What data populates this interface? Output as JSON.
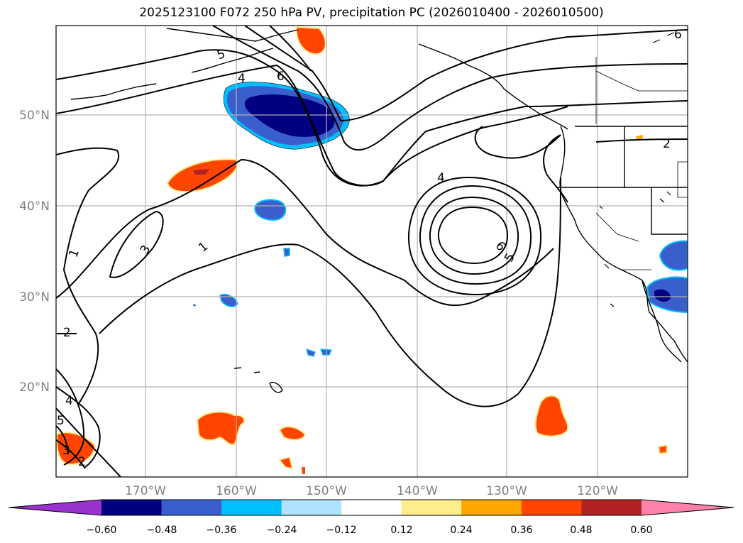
{
  "title": "2025123100 F072 250 hPa PV, precipitation PC (2026010400 - 2026010500)",
  "map": {
    "lat_labels": [
      "50°N",
      "40°N",
      "30°N",
      "20°N"
    ],
    "lon_labels": [
      "170°W",
      "160°W",
      "150°W",
      "140°W",
      "130°W",
      "120°W"
    ],
    "grid": true,
    "gridline_color": "#b0b0b0",
    "label_color": "#808080",
    "coastline_color": "#000000"
  },
  "contours": {
    "field": "250 hPa PV",
    "color": "#000000",
    "labels": [
      "1",
      "1",
      "2",
      "2",
      "2",
      "3",
      "3",
      "4",
      "4",
      "4",
      "5",
      "5",
      "5",
      "6",
      "6",
      "6"
    ]
  },
  "precip_fill": {
    "field": "precipitation PC",
    "regions": [
      {
        "area": "Gulf of Alaska",
        "sign": "negative",
        "color": "#000080"
      },
      {
        "area": "NW of Hawaii",
        "sign": "positive",
        "color": "#ff4500"
      },
      {
        "area": "south of Hawaii",
        "sign": "positive",
        "color": "#ff4500"
      },
      {
        "area": "off Baja California",
        "sign": "positive",
        "color": "#ff4500"
      },
      {
        "area": "southern California",
        "sign": "negative",
        "color": "#3a5fcd"
      }
    ]
  },
  "colorbar": {
    "ticks": [
      "−0.60",
      "−0.48",
      "−0.36",
      "−0.24",
      "−0.12",
      "0.12",
      "0.24",
      "0.36",
      "0.48",
      "0.60"
    ],
    "colors": [
      "#9932cc",
      "#000080",
      "#3a5fcd",
      "#00bfff",
      "#b0e2ff",
      "#ffffff",
      "#ffec8b",
      "#ffa500",
      "#ff4500",
      "#b22222",
      "#ff82ab"
    ],
    "extend": "both"
  }
}
